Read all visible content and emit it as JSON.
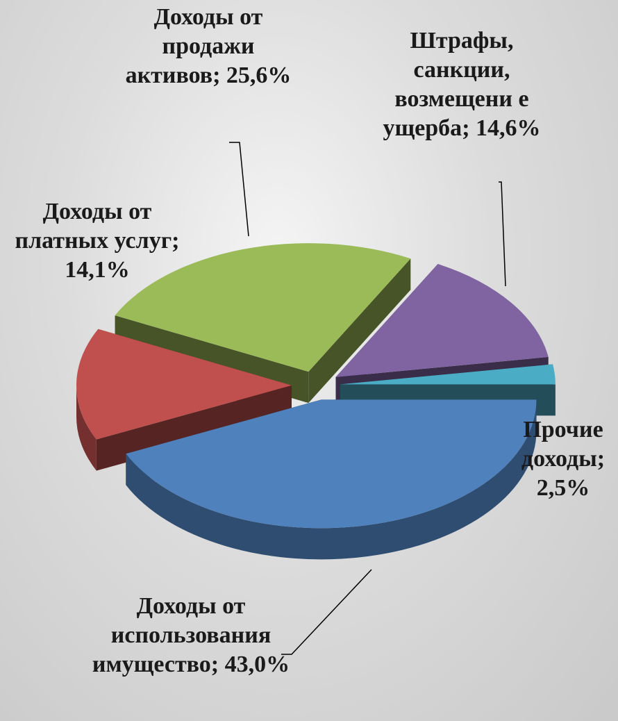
{
  "chart_data": {
    "type": "pie3d",
    "categories": [
      "Доходы от использования имущество",
      "Доходы от платных услуг",
      "Доходы от продажи активов",
      "Штрафы, санкции, возмещени е ущерба",
      "Прочие доходы"
    ],
    "values": [
      43.0,
      14.1,
      25.6,
      14.6,
      2.5
    ],
    "value_labels": [
      "43,0%",
      "14,1%",
      "25,6%",
      "14,6%",
      "2,5%"
    ],
    "label_separator": ";",
    "colors": [
      "#4f81bd",
      "#c0504d",
      "#9bbb59",
      "#8064a2",
      "#4bacc6"
    ]
  }
}
